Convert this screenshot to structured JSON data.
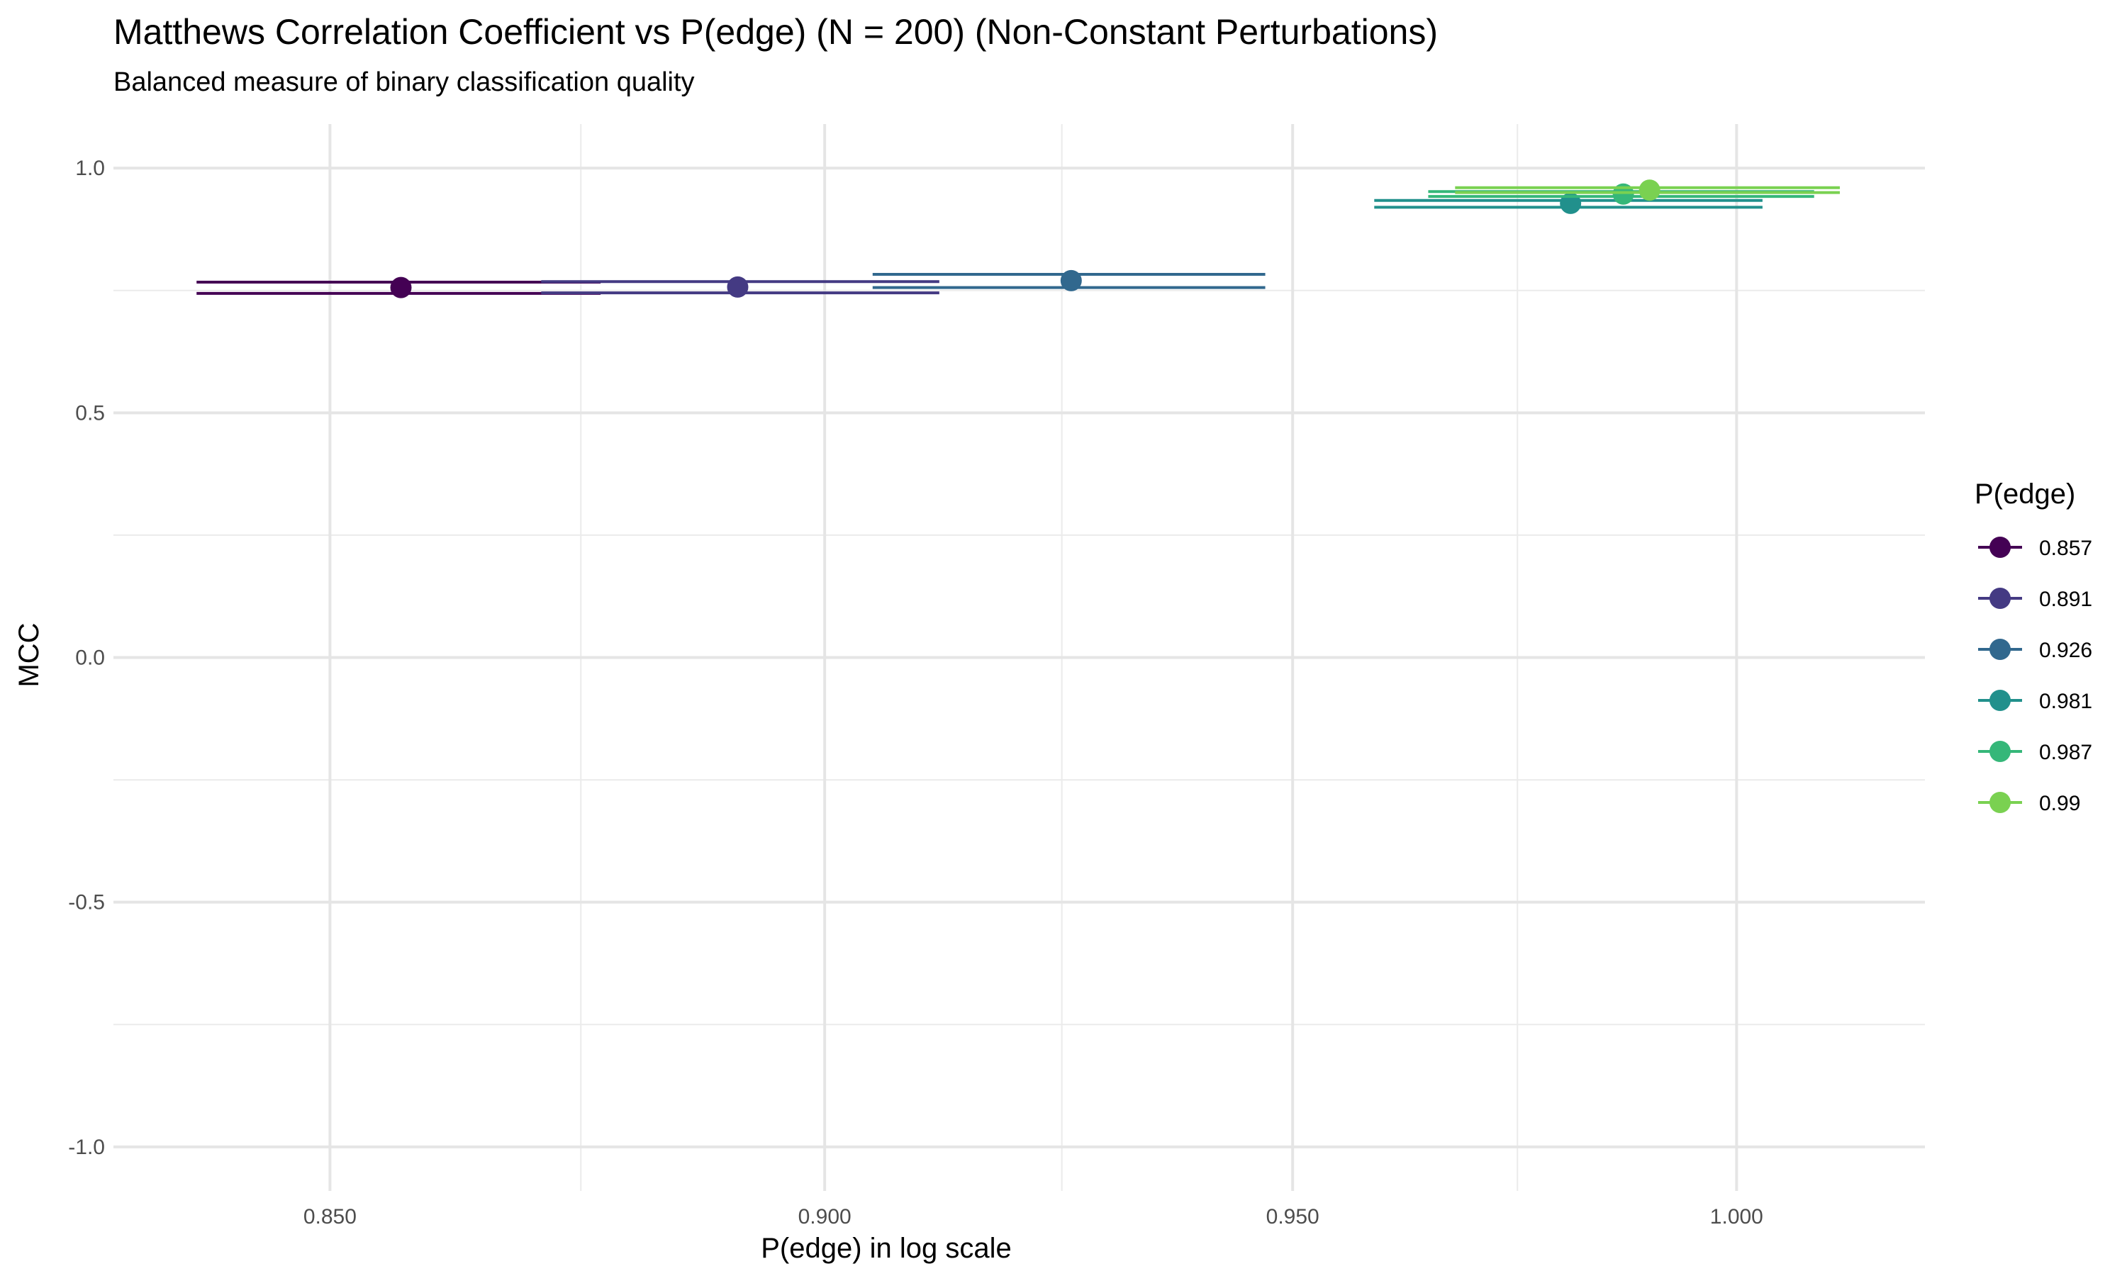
{
  "chart_data": {
    "type": "scatter",
    "title": "Matthews Correlation Coefficient vs P(edge) (N = 200) (Non-Constant Perturbations)",
    "subtitle": "Balanced measure of binary classification quality",
    "xlabel": "P(edge) in log scale",
    "ylabel": "MCC",
    "x_scale": "log",
    "xlim": [
      0.829,
      1.022
    ],
    "ylim": [
      -1.09,
      1.09
    ],
    "x_ticks": [
      0.85,
      0.9,
      0.95,
      1.0
    ],
    "x_tick_labels": [
      "0.850",
      "0.900",
      "0.950",
      "1.000"
    ],
    "y_ticks": [
      1.0,
      0.5,
      0.0,
      -0.5,
      -1.0
    ],
    "y_tick_labels": [
      "1.0",
      "0.5",
      "0.0",
      "-0.5",
      "-1.0"
    ],
    "grid": true,
    "legend_title": "P(edge)",
    "legend_position": "right",
    "series": [
      {
        "name": "0.857",
        "color": "#440154",
        "x": 0.857,
        "y": 0.756,
        "xerr_low": 0.837,
        "xerr_high": 0.877,
        "bars": [
          0.767,
          0.744
        ]
      },
      {
        "name": "0.891",
        "color": "#443A83",
        "x": 0.891,
        "y": 0.757,
        "xerr_low": 0.871,
        "xerr_high": 0.912,
        "bars": [
          0.768,
          0.745
        ]
      },
      {
        "name": "0.926",
        "color": "#31688E",
        "x": 0.926,
        "y": 0.77,
        "xerr_low": 0.905,
        "xerr_high": 0.947,
        "bars": [
          0.783,
          0.756
        ]
      },
      {
        "name": "0.981",
        "color": "#21908C",
        "x": 0.981,
        "y": 0.928,
        "xerr_low": 0.959,
        "xerr_high": 1.003,
        "bars": [
          0.934,
          0.92
        ]
      },
      {
        "name": "0.987",
        "color": "#35B779",
        "x": 0.987,
        "y": 0.947,
        "xerr_low": 0.965,
        "xerr_high": 1.009,
        "bars": [
          0.952,
          0.942
        ]
      },
      {
        "name": "0.99",
        "color": "#7AD151",
        "x": 0.99,
        "y": 0.955,
        "xerr_low": 0.968,
        "xerr_high": 1.012,
        "bars": [
          0.96,
          0.95
        ]
      }
    ]
  }
}
